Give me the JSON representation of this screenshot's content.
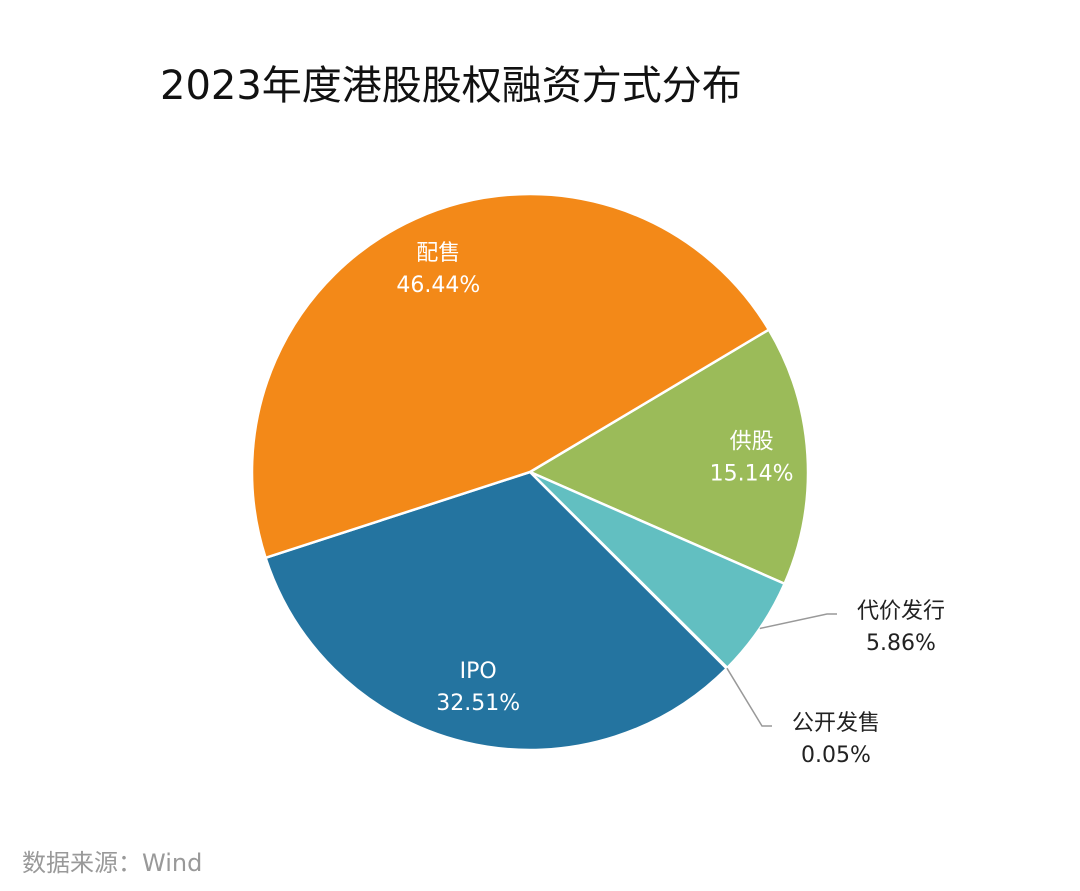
{
  "chart_data": {
    "type": "pie",
    "title": "2023年度港股股权融资方式分布",
    "categories": [
      "供股",
      "代价发行",
      "公开发售",
      "IPO",
      "配售"
    ],
    "values": [
      15.14,
      5.86,
      0.05,
      32.51,
      46.44
    ],
    "value_labels": [
      "15.14%",
      "5.86%",
      "0.05%",
      "32.51%",
      "46.44%"
    ],
    "colors": [
      "#9bbb59",
      "#62bfc1",
      "#4e9bb5",
      "#2474a0",
      "#f38918"
    ],
    "source": "数据来源：Wind"
  }
}
